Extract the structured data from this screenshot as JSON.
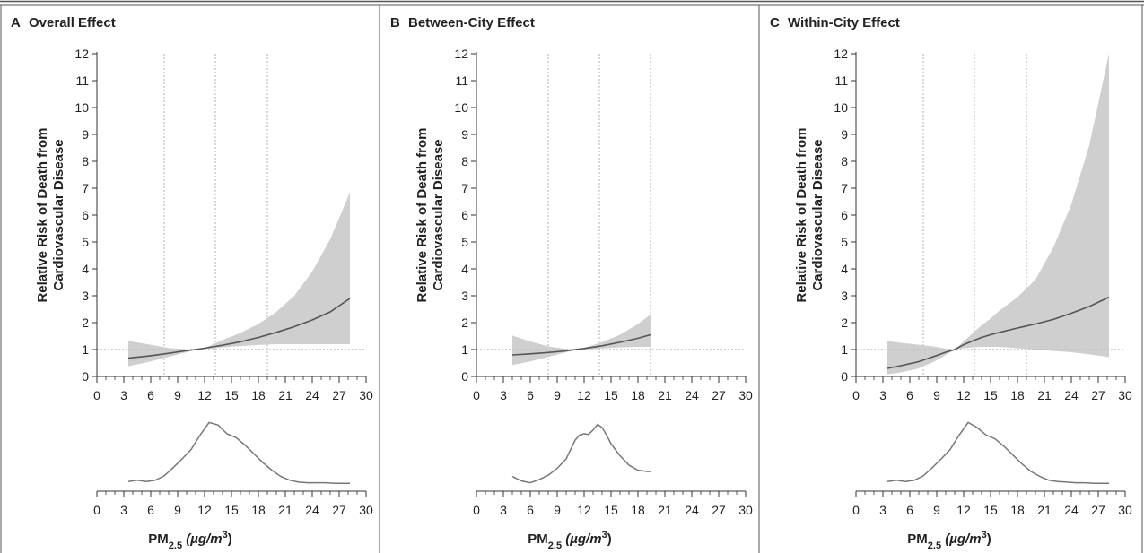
{
  "colors": {
    "band": "#cfcfcf",
    "line": "#555555",
    "reference": "#bdbdbd",
    "border": "#555555",
    "density": "#777777"
  },
  "chart_data": [
    {
      "type": "line",
      "letter": "A",
      "title": "Overall Effect",
      "ylabel_line1": "Relative Risk of Death from",
      "ylabel_line2": "Cardiovascular Disease",
      "xlabel_main": "PM",
      "xlabel_sub": "2.5",
      "xlabel_unit": " (µg/m",
      "xlabel_sup": "3",
      "xlabel_close": ")",
      "xlim": [
        0,
        30
      ],
      "ylim": [
        0,
        12
      ],
      "xticks": [
        "0",
        "3",
        "6",
        "9",
        "12",
        "15",
        "18",
        "21",
        "24",
        "27",
        "30"
      ],
      "yticks": [
        "0",
        "1",
        "2",
        "3",
        "4",
        "5",
        "6",
        "7",
        "8",
        "9",
        "10",
        "11",
        "12"
      ],
      "reference_y": 1,
      "vertical_lines": [
        7.5,
        13.2,
        19.0
      ],
      "series": [
        {
          "x": [
            3.5,
            6,
            8,
            10,
            11,
            12,
            14,
            16,
            18,
            20,
            22,
            24,
            26,
            28.2
          ],
          "y": [
            0.68,
            0.77,
            0.86,
            0.96,
            1.0,
            1.05,
            1.16,
            1.29,
            1.45,
            1.64,
            1.85,
            2.1,
            2.4,
            2.9
          ],
          "lower": [
            0.38,
            0.56,
            0.73,
            0.9,
            1.0,
            1.02,
            1.08,
            1.13,
            1.17,
            1.2,
            1.2,
            1.2,
            1.2,
            1.2
          ],
          "upper": [
            1.32,
            1.18,
            1.06,
            1.0,
            1.0,
            1.06,
            1.35,
            1.62,
            1.95,
            2.4,
            3.0,
            3.9,
            5.1,
            6.85
          ]
        }
      ],
      "density": {
        "x": [
          3.5,
          4.5,
          5.5,
          6.5,
          7.5,
          8.5,
          9.5,
          10.5,
          11.5,
          12.5,
          13.5,
          14.5,
          15.5,
          16.5,
          17.5,
          18.5,
          19.5,
          20.5,
          21.5,
          22.5,
          23.5,
          24.5,
          25.5,
          26.5,
          27.5,
          28.2
        ],
        "y": [
          0.04,
          0.06,
          0.04,
          0.06,
          0.13,
          0.26,
          0.4,
          0.55,
          0.78,
          0.98,
          0.94,
          0.8,
          0.74,
          0.62,
          0.48,
          0.34,
          0.22,
          0.12,
          0.06,
          0.03,
          0.02,
          0.02,
          0.02,
          0.01,
          0.01,
          0.01
        ]
      }
    },
    {
      "type": "line",
      "letter": "B",
      "title": "Between-City Effect",
      "ylabel_line1": "Relative Risk of Death from",
      "ylabel_line2": "Cardiovascular Disease",
      "xlabel_main": "PM",
      "xlabel_sub": "2.5",
      "xlabel_unit": " (µg/m",
      "xlabel_sup": "3",
      "xlabel_close": ")",
      "xlim": [
        0,
        30
      ],
      "ylim": [
        0,
        12
      ],
      "xticks": [
        "0",
        "3",
        "6",
        "9",
        "12",
        "15",
        "18",
        "21",
        "24",
        "27",
        "30"
      ],
      "yticks": [
        "0",
        "1",
        "2",
        "3",
        "4",
        "5",
        "6",
        "7",
        "8",
        "9",
        "10",
        "11",
        "12"
      ],
      "reference_y": 1,
      "vertical_lines": [
        8.0,
        13.7,
        19.4
      ],
      "series": [
        {
          "x": [
            4,
            6,
            8,
            10,
            11,
            12,
            14,
            16,
            18,
            19.4
          ],
          "y": [
            0.8,
            0.84,
            0.89,
            0.95,
            1.0,
            1.04,
            1.14,
            1.27,
            1.42,
            1.55
          ],
          "lower": [
            0.42,
            0.56,
            0.72,
            0.9,
            1.0,
            1.0,
            1.04,
            1.08,
            1.1,
            1.1
          ],
          "upper": [
            1.52,
            1.3,
            1.12,
            1.02,
            1.0,
            1.06,
            1.28,
            1.55,
            1.95,
            2.3
          ]
        }
      ],
      "density": {
        "x": [
          4,
          5,
          6,
          7,
          8,
          9,
          10,
          11,
          11.5,
          12,
          12.5,
          13,
          13.5,
          14,
          14.5,
          15,
          16,
          17,
          18,
          19,
          19.4
        ],
        "y": [
          0.12,
          0.05,
          0.02,
          0.07,
          0.14,
          0.25,
          0.4,
          0.7,
          0.78,
          0.8,
          0.79,
          0.86,
          0.95,
          0.9,
          0.78,
          0.64,
          0.45,
          0.3,
          0.22,
          0.2,
          0.2
        ]
      }
    },
    {
      "type": "line",
      "letter": "C",
      "title": "Within-City Effect",
      "ylabel_line1": "Relative Risk of Death from",
      "ylabel_line2": "Cardiovascular Disease",
      "xlabel_main": "PM",
      "xlabel_sub": "2.5",
      "xlabel_unit": " (µg/m",
      "xlabel_sup": "3",
      "xlabel_close": ")",
      "xlim": [
        0,
        30
      ],
      "ylim": [
        0,
        12
      ],
      "xticks": [
        "0",
        "3",
        "6",
        "9",
        "12",
        "15",
        "18",
        "21",
        "24",
        "27",
        "30"
      ],
      "yticks": [
        "0",
        "1",
        "2",
        "3",
        "4",
        "5",
        "6",
        "7",
        "8",
        "9",
        "10",
        "11",
        "12"
      ],
      "reference_y": 1,
      "vertical_lines": [
        7.5,
        13.2,
        19.0
      ],
      "series": [
        {
          "x": [
            3.5,
            5,
            7,
            9,
            10,
            11,
            12,
            13,
            14,
            15,
            16,
            18,
            20,
            22,
            24,
            26,
            28.2
          ],
          "y": [
            0.3,
            0.4,
            0.55,
            0.78,
            0.9,
            1.0,
            1.18,
            1.32,
            1.45,
            1.55,
            1.64,
            1.8,
            1.95,
            2.12,
            2.35,
            2.6,
            2.95
          ],
          "lower": [
            0.08,
            0.15,
            0.3,
            0.6,
            0.8,
            1.0,
            1.05,
            1.08,
            1.1,
            1.1,
            1.1,
            1.05,
            1.0,
            0.95,
            0.9,
            0.82,
            0.72
          ],
          "upper": [
            1.32,
            1.25,
            1.18,
            1.1,
            1.03,
            1.0,
            1.3,
            1.6,
            1.9,
            2.15,
            2.45,
            2.95,
            3.6,
            4.8,
            6.4,
            8.6,
            12.0
          ]
        }
      ],
      "density": {
        "x": [
          3.5,
          4.5,
          5.5,
          6.5,
          7.5,
          8.5,
          9.5,
          10.5,
          11.5,
          12.5,
          13.5,
          14.5,
          15.5,
          16.5,
          17.5,
          18.5,
          19.5,
          20.5,
          21.5,
          22.5,
          23.5,
          24.5,
          25.5,
          26.5,
          27.5,
          28.2
        ],
        "y": [
          0.04,
          0.06,
          0.04,
          0.06,
          0.13,
          0.26,
          0.4,
          0.55,
          0.78,
          0.98,
          0.9,
          0.78,
          0.72,
          0.6,
          0.46,
          0.32,
          0.2,
          0.12,
          0.06,
          0.04,
          0.03,
          0.02,
          0.02,
          0.01,
          0.01,
          0.01
        ]
      }
    }
  ]
}
